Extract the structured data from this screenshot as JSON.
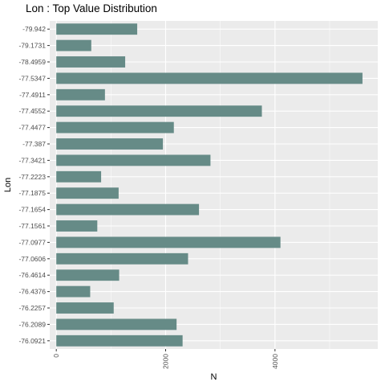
{
  "chart_data": {
    "type": "bar",
    "orientation": "horizontal",
    "title": "Lon : Top Value Distribution",
    "xlabel": "N",
    "ylabel": "Lon",
    "categories": [
      "-79.942",
      "-79.1731",
      "-78.4959",
      "-77.5347",
      "-77.4911",
      "-77.4552",
      "-77.4477",
      "-77.387",
      "-77.3421",
      "-77.2223",
      "-77.1875",
      "-77.1654",
      "-77.1561",
      "-77.0977",
      "-77.0606",
      "-76.4614",
      "-76.4376",
      "-76.2257",
      "-76.2089",
      "-76.0921"
    ],
    "values": [
      1480,
      640,
      1260,
      5600,
      890,
      3760,
      2150,
      1950,
      2820,
      820,
      1140,
      2610,
      750,
      4100,
      2410,
      1150,
      620,
      1050,
      2200,
      2310
    ],
    "xlim": [
      -120,
      5880
    ],
    "xticks": [
      0,
      2000,
      4000
    ],
    "xtick_labels": [
      "0",
      "2000",
      "4000"
    ],
    "grid": true,
    "colors": {
      "bar": "#668b87",
      "panel": "#ebebeb",
      "grid": "#ffffff"
    }
  }
}
